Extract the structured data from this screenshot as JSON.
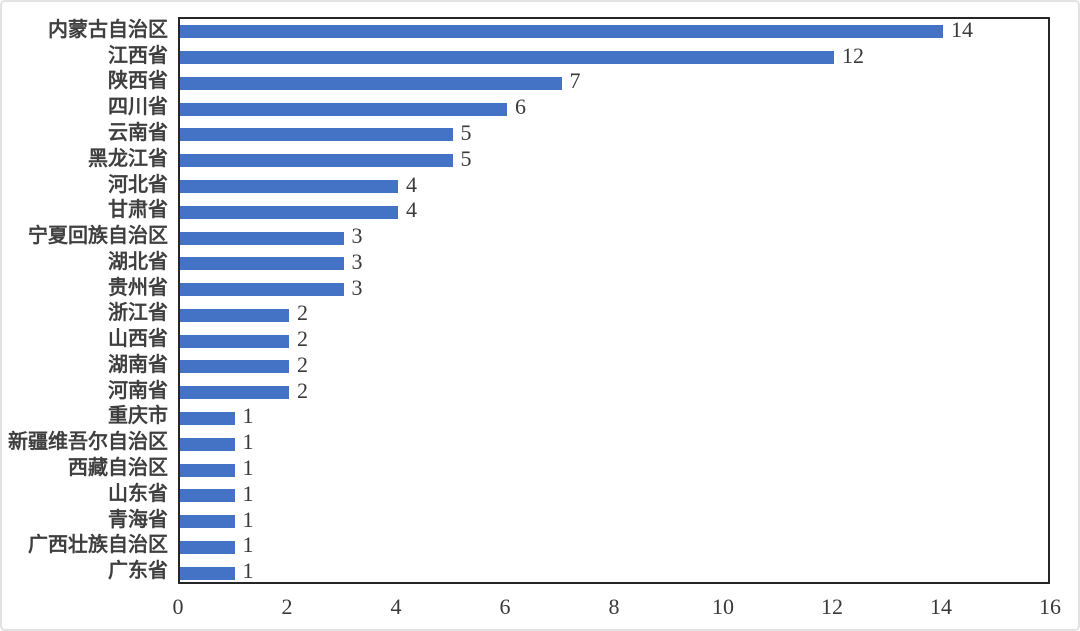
{
  "chart_data": {
    "type": "bar",
    "orientation": "horizontal",
    "title": "",
    "xlabel": "",
    "ylabel": "",
    "categories": [
      "内蒙古自治区",
      "江西省",
      "陕西省",
      "四川省",
      "云南省",
      "黑龙江省",
      "河北省",
      "甘肃省",
      "宁夏回族自治区",
      "湖北省",
      "贵州省",
      "浙江省",
      "山西省",
      "湖南省",
      "河南省",
      "重庆市",
      "新疆维吾尔自治区",
      "西藏自治区",
      "山东省",
      "青海省",
      "广西壮族自治区",
      "广东省"
    ],
    "values": [
      14,
      12,
      7,
      6,
      5,
      5,
      4,
      4,
      3,
      3,
      3,
      2,
      2,
      2,
      2,
      1,
      1,
      1,
      1,
      1,
      1,
      1
    ],
    "data_labels": [
      "14",
      "12",
      "7",
      "6",
      "5",
      "5",
      "4",
      "4",
      "3",
      "3",
      "3",
      "2",
      "2",
      "2",
      "2",
      "1",
      "1",
      "1",
      "1",
      "1",
      "1",
      "1"
    ],
    "xlim": [
      0,
      16
    ],
    "x_ticks": [
      0,
      2,
      4,
      6,
      8,
      10,
      12,
      14,
      16
    ],
    "grid": false,
    "legend": false,
    "bar_color": "#4472C4",
    "plot_border_color": "#262626",
    "label_color": "#3f3f3f",
    "number_color": "#3a3a3a"
  }
}
